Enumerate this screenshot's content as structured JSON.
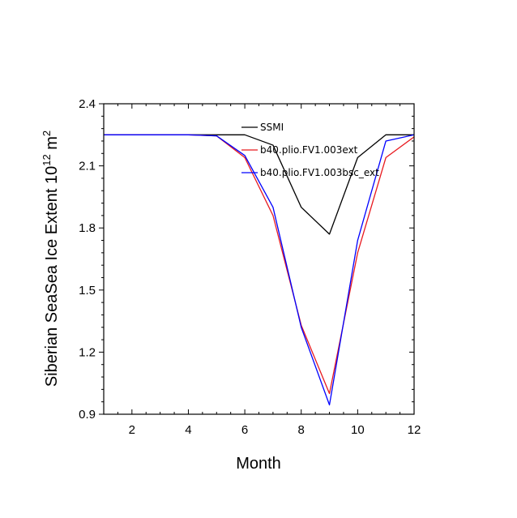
{
  "chart_data": {
    "type": "line",
    "title": "",
    "xlabel": "Month",
    "ylabel": {
      "base": "Siberian SeaSea Ice Extent 10",
      "exp1": "12",
      "unit": " m",
      "exp2": "2"
    },
    "xlim": [
      1,
      12
    ],
    "ylim": [
      0.9,
      2.4
    ],
    "xticks": [
      2,
      4,
      6,
      8,
      10,
      12
    ],
    "yticks": [
      0.9,
      1.2,
      1.5,
      1.8,
      2.1,
      2.4
    ],
    "ytick_labels": [
      "0.9",
      "1.2",
      "1.5",
      "1.8",
      "2.1",
      "2.4"
    ],
    "x": [
      1,
      2,
      3,
      4,
      5,
      6,
      7,
      8,
      9,
      10,
      11,
      12
    ],
    "series": [
      {
        "name": "SSMI",
        "color": "#000000",
        "values": [
          2.25,
          2.25,
          2.25,
          2.25,
          2.25,
          2.25,
          2.2,
          1.9,
          1.77,
          2.14,
          2.25,
          2.25
        ]
      },
      {
        "name": "b40.plio.FV1.003ext",
        "color": "#e8191f",
        "values": [
          2.25,
          2.25,
          2.25,
          2.25,
          2.245,
          2.14,
          1.86,
          1.33,
          1.0,
          1.68,
          2.14,
          2.24
        ]
      },
      {
        "name": "b40.plio.FV1.003bsc_ext",
        "color": "#0000ff",
        "values": [
          2.25,
          2.25,
          2.25,
          2.25,
          2.245,
          2.15,
          1.9,
          1.32,
          0.945,
          1.74,
          2.22,
          2.25
        ]
      }
    ],
    "legend_position": "top-right-inside"
  }
}
